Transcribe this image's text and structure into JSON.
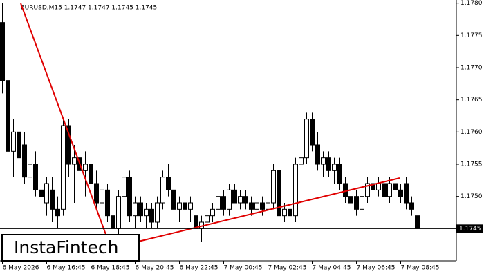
{
  "chart_data": {
    "type": "candlestick",
    "title": "EURUSD,M15  1.1747 1.1747 1.1745 1.1745",
    "watermark": "InstaFintech",
    "categories": [
      "6 May 2026",
      null,
      null,
      null,
      null,
      null,
      null,
      null,
      "6 May 16:45",
      null,
      null,
      null,
      null,
      null,
      null,
      null,
      "6 May 18:45",
      null,
      null,
      null,
      null,
      null,
      null,
      null,
      "6 May 20:45",
      null,
      null,
      null,
      null,
      null,
      null,
      null,
      "6 May 22:45",
      null,
      null,
      null,
      null,
      null,
      null,
      null,
      "7 May 00:45",
      null,
      null,
      null,
      null,
      null,
      null,
      null,
      "7 May 02:45",
      null,
      null,
      null,
      null,
      null,
      null,
      null,
      "7 May 04:45",
      null,
      null,
      null,
      null,
      null,
      null,
      null,
      "7 May 06:45",
      null,
      null,
      null,
      null,
      null,
      null,
      null,
      "7 May 08:45",
      null,
      null,
      null
    ],
    "ohlc": [
      [
        1.1777,
        1.178,
        1.1766,
        1.1768
      ],
      [
        1.1768,
        1.1772,
        1.1754,
        1.1757
      ],
      [
        1.1757,
        1.1762,
        1.1753,
        1.176
      ],
      [
        1.176,
        1.1764,
        1.1755,
        1.1756
      ],
      [
        1.1758,
        1.176,
        1.1752,
        1.1753
      ],
      [
        1.1753,
        1.1756,
        1.1749,
        1.1755
      ],
      [
        1.1755,
        1.1757,
        1.175,
        1.1751
      ],
      [
        1.1751,
        1.1754,
        1.1748,
        1.175
      ],
      [
        1.1749,
        1.1753,
        1.1747,
        1.1752
      ],
      [
        1.1751,
        1.1753,
        1.1746,
        1.1748
      ],
      [
        1.1748,
        1.175,
        1.1745,
        1.1747
      ],
      [
        1.1748,
        1.1762,
        1.1747,
        1.1761
      ],
      [
        1.1761,
        1.1762,
        1.1753,
        1.1755
      ],
      [
        1.1755,
        1.1758,
        1.1749,
        1.1756
      ],
      [
        1.1756,
        1.1757,
        1.1752,
        1.1754
      ],
      [
        1.1754,
        1.1757,
        1.175,
        1.1755
      ],
      [
        1.1755,
        1.1756,
        1.1751,
        1.1752
      ],
      [
        1.1752,
        1.1754,
        1.1748,
        1.1749
      ],
      [
        1.1749,
        1.1752,
        1.1747,
        1.1751
      ],
      [
        1.1751,
        1.1752,
        1.1746,
        1.1747
      ],
      [
        1.1747,
        1.175,
        1.1744,
        1.1745
      ],
      [
        1.1745,
        1.1751,
        1.1744,
        1.175
      ],
      [
        1.175,
        1.1755,
        1.1748,
        1.1753
      ],
      [
        1.1753,
        1.1754,
        1.1746,
        1.1747
      ],
      [
        1.1747,
        1.175,
        1.1745,
        1.1749
      ],
      [
        1.1749,
        1.175,
        1.1746,
        1.1747
      ],
      [
        1.1747,
        1.1749,
        1.1745,
        1.1748
      ],
      [
        1.1748,
        1.1749,
        1.1745,
        1.1746
      ],
      [
        1.1746,
        1.175,
        1.1745,
        1.1749
      ],
      [
        1.1749,
        1.1754,
        1.1748,
        1.1753
      ],
      [
        1.1753,
        1.1755,
        1.175,
        1.1751
      ],
      [
        1.1751,
        1.1753,
        1.1747,
        1.1748
      ],
      [
        1.1748,
        1.175,
        1.1746,
        1.1749
      ],
      [
        1.1749,
        1.1751,
        1.1747,
        1.1748
      ],
      [
        1.1748,
        1.175,
        1.1746,
        1.1749
      ],
      [
        1.1747,
        1.1748,
        1.1744,
        1.1745
      ],
      [
        1.1745,
        1.1747,
        1.1743,
        1.1746
      ],
      [
        1.1746,
        1.1748,
        1.1745,
        1.1747
      ],
      [
        1.1747,
        1.1749,
        1.1746,
        1.1748
      ],
      [
        1.1748,
        1.1751,
        1.1747,
        1.175
      ],
      [
        1.175,
        1.1751,
        1.1747,
        1.1748
      ],
      [
        1.1748,
        1.1752,
        1.1747,
        1.1751
      ],
      [
        1.1751,
        1.1752,
        1.1749,
        1.1749
      ],
      [
        1.1749,
        1.1751,
        1.1748,
        1.175
      ],
      [
        1.175,
        1.1751,
        1.1748,
        1.1749
      ],
      [
        1.1749,
        1.175,
        1.1747,
        1.1748
      ],
      [
        1.1748,
        1.175,
        1.1747,
        1.1749
      ],
      [
        1.1749,
        1.175,
        1.1747,
        1.1748
      ],
      [
        1.1748,
        1.175,
        1.1746,
        1.1749
      ],
      [
        1.1749,
        1.1755,
        1.1748,
        1.1754
      ],
      [
        1.1754,
        1.1756,
        1.1746,
        1.1747
      ],
      [
        1.1747,
        1.1749,
        1.1746,
        1.1748
      ],
      [
        1.1748,
        1.175,
        1.1746,
        1.1747
      ],
      [
        1.1747,
        1.1756,
        1.1746,
        1.1755
      ],
      [
        1.1755,
        1.1758,
        1.1754,
        1.1756
      ],
      [
        1.1756,
        1.1763,
        1.1755,
        1.1762
      ],
      [
        1.1762,
        1.1763,
        1.1757,
        1.1758
      ],
      [
        1.1758,
        1.176,
        1.1754,
        1.1755
      ],
      [
        1.1755,
        1.1757,
        1.1753,
        1.1756
      ],
      [
        1.1756,
        1.1757,
        1.1753,
        1.1754
      ],
      [
        1.1754,
        1.1756,
        1.1752,
        1.1755
      ],
      [
        1.1755,
        1.1756,
        1.1751,
        1.1752
      ],
      [
        1.1752,
        1.1753,
        1.1749,
        1.175
      ],
      [
        1.175,
        1.1752,
        1.1748,
        1.1749
      ],
      [
        1.175,
        1.1751,
        1.1747,
        1.1748
      ],
      [
        1.1748,
        1.1751,
        1.1747,
        1.175
      ],
      [
        1.175,
        1.1753,
        1.1749,
        1.1752
      ],
      [
        1.1752,
        1.1753,
        1.1749,
        1.1751
      ],
      [
        1.1751,
        1.1753,
        1.175,
        1.1752
      ],
      [
        1.1752,
        1.1753,
        1.1749,
        1.175
      ],
      [
        1.175,
        1.1753,
        1.1749,
        1.1752
      ],
      [
        1.1752,
        1.1753,
        1.175,
        1.1751
      ],
      [
        1.1751,
        1.1752,
        1.1749,
        1.175
      ],
      [
        1.1752,
        1.1753,
        1.1748,
        1.1749
      ],
      [
        1.1749,
        1.175,
        1.1747,
        1.1748
      ],
      [
        1.1747,
        1.1747,
        1.1745,
        1.1745
      ]
    ],
    "ylim": [
      1.174,
      1.17805
    ],
    "yticks": [
      {
        "value": 1.175,
        "label": "1.1750"
      },
      1.1755,
      {
        "value": 1.176,
        "label": "1.1760"
      },
      1.1765,
      {
        "value": 1.177,
        "label": "1.1770"
      },
      1.1775,
      {
        "value": 1.178,
        "label": "1.1780"
      }
    ],
    "current_price": 1.1745,
    "bull_color": "#ffffff",
    "bear_color": "#000000"
  }
}
